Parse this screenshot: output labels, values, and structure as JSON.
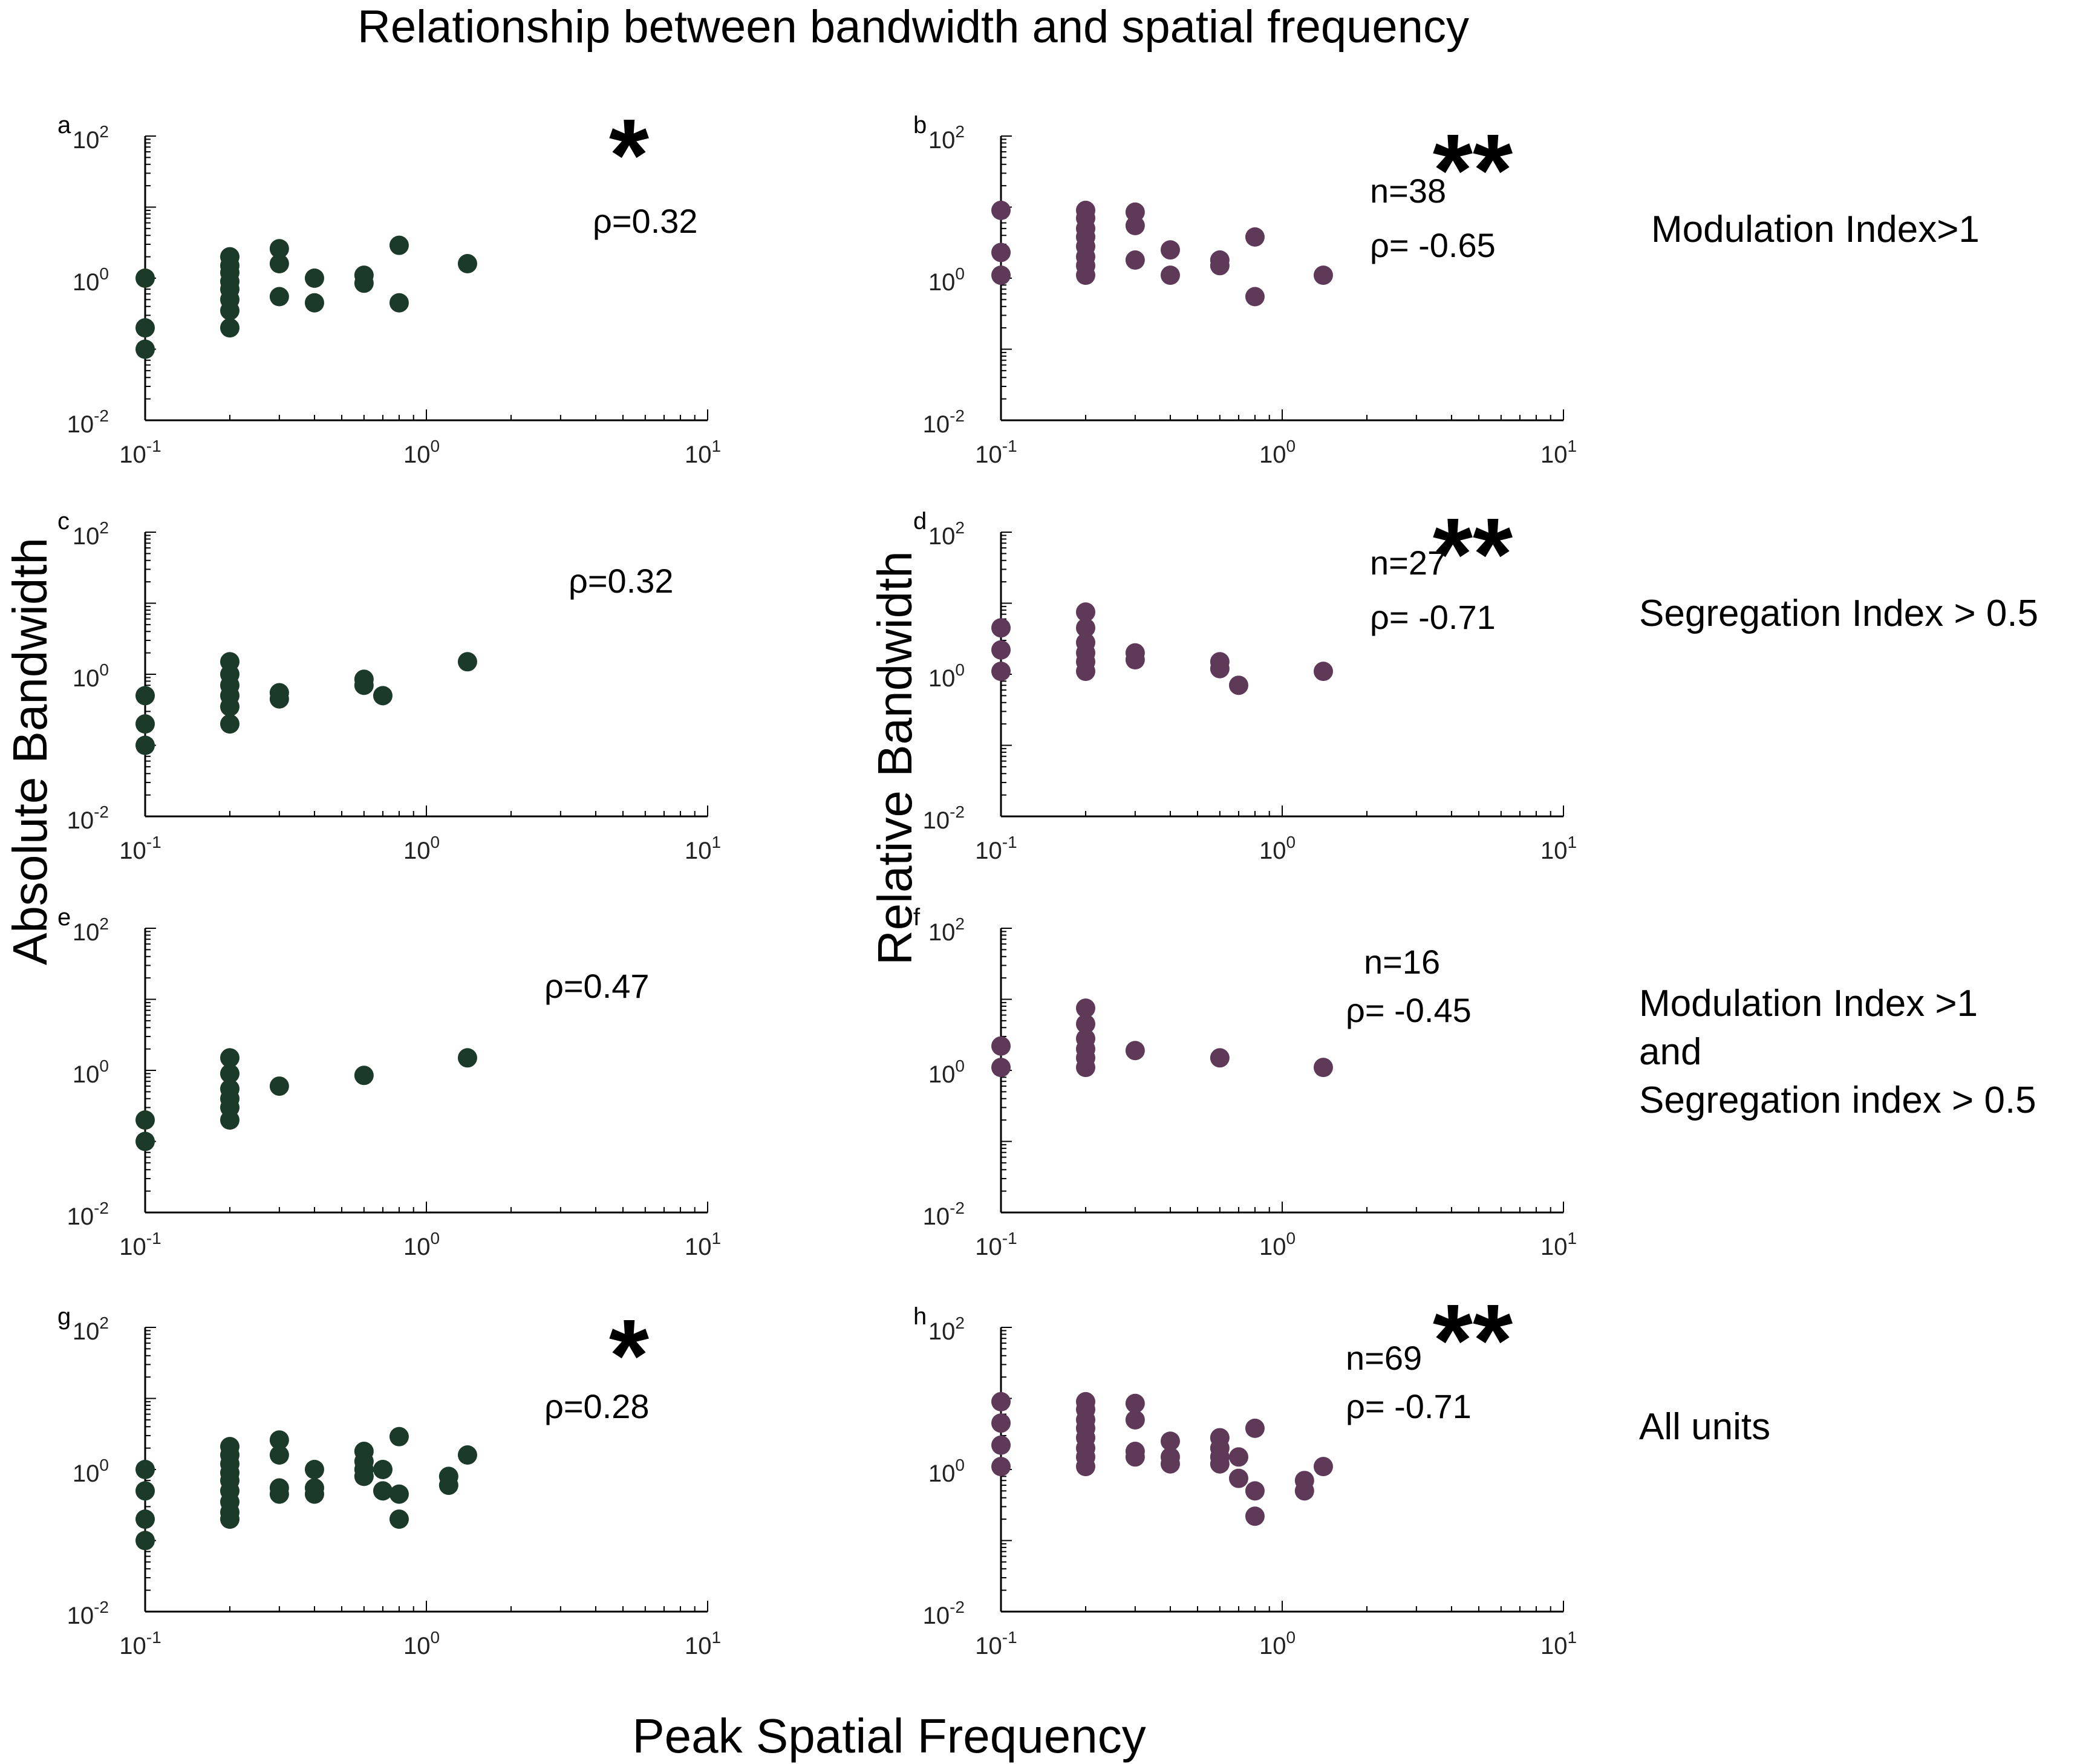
{
  "title": "Relationship between bandwidth and spatial frequency",
  "xlabel": "Peak Spatial Frequency",
  "ylabel_left": "Absolute Bandwidth",
  "ylabel_right": "Relative Bandwidth",
  "row_labels": [
    "Modulation Index>1",
    "Segregation Index > 0.5",
    "Modulation Index  >1\nand\nSegregation index > 0.5",
    "All units"
  ],
  "colors": {
    "absolute": "#1b3a2a",
    "relative": "#5e3a58"
  },
  "chart_data": [
    {
      "panel": "a",
      "type": "scatter",
      "scale": "log",
      "xlim": [
        0.1,
        10
      ],
      "ylim": [
        0.01,
        100
      ],
      "color": "#1b3a2a",
      "rho": "ρ=0.32",
      "n": "",
      "stars": "*",
      "points": [
        [
          0.1,
          1.0
        ],
        [
          0.1,
          0.2
        ],
        [
          0.1,
          0.1
        ],
        [
          0.2,
          2.0
        ],
        [
          0.2,
          1.5
        ],
        [
          0.2,
          1.2
        ],
        [
          0.2,
          0.9
        ],
        [
          0.2,
          0.7
        ],
        [
          0.2,
          0.5
        ],
        [
          0.2,
          0.35
        ],
        [
          0.2,
          0.2
        ],
        [
          0.3,
          2.6
        ],
        [
          0.3,
          1.6
        ],
        [
          0.3,
          0.55
        ],
        [
          0.4,
          1.0
        ],
        [
          0.4,
          0.45
        ],
        [
          0.6,
          1.1
        ],
        [
          0.6,
          0.85
        ],
        [
          0.8,
          2.9
        ],
        [
          0.8,
          0.45
        ],
        [
          1.4,
          1.6
        ]
      ]
    },
    {
      "panel": "b",
      "type": "scatter",
      "scale": "log",
      "xlim": [
        0.1,
        10
      ],
      "ylim": [
        0.01,
        100
      ],
      "color": "#5e3a58",
      "rho": "ρ= -0.65",
      "n": "n=38",
      "stars": "**",
      "points": [
        [
          0.1,
          9.0
        ],
        [
          0.1,
          2.3
        ],
        [
          0.1,
          1.1
        ],
        [
          0.2,
          9.0
        ],
        [
          0.2,
          7.0
        ],
        [
          0.2,
          5.0
        ],
        [
          0.2,
          3.8
        ],
        [
          0.2,
          2.8
        ],
        [
          0.2,
          2.0
        ],
        [
          0.2,
          1.5
        ],
        [
          0.2,
          1.1
        ],
        [
          0.3,
          8.5
        ],
        [
          0.3,
          5.5
        ],
        [
          0.3,
          1.8
        ],
        [
          0.4,
          2.5
        ],
        [
          0.4,
          1.1
        ],
        [
          0.6,
          1.8
        ],
        [
          0.6,
          1.5
        ],
        [
          0.8,
          3.8
        ],
        [
          0.8,
          0.55
        ],
        [
          1.4,
          1.1
        ]
      ]
    },
    {
      "panel": "c",
      "type": "scatter",
      "scale": "log",
      "xlim": [
        0.1,
        10
      ],
      "ylim": [
        0.01,
        100
      ],
      "color": "#1b3a2a",
      "rho": "ρ=0.32",
      "n": "",
      "stars": "",
      "points": [
        [
          0.1,
          0.5
        ],
        [
          0.1,
          0.2
        ],
        [
          0.1,
          0.1
        ],
        [
          0.2,
          1.5
        ],
        [
          0.2,
          1.0
        ],
        [
          0.2,
          0.7
        ],
        [
          0.2,
          0.5
        ],
        [
          0.2,
          0.35
        ],
        [
          0.2,
          0.2
        ],
        [
          0.3,
          0.55
        ],
        [
          0.3,
          0.45
        ],
        [
          0.6,
          0.85
        ],
        [
          0.6,
          0.7
        ],
        [
          0.7,
          0.5
        ],
        [
          1.4,
          1.5
        ]
      ]
    },
    {
      "panel": "d",
      "type": "scatter",
      "scale": "log",
      "xlim": [
        0.1,
        10
      ],
      "ylim": [
        0.01,
        100
      ],
      "color": "#5e3a58",
      "rho": "ρ= -0.71",
      "n": "n=27",
      "stars": "**",
      "points": [
        [
          0.1,
          4.5
        ],
        [
          0.1,
          2.2
        ],
        [
          0.1,
          1.1
        ],
        [
          0.2,
          7.5
        ],
        [
          0.2,
          4.5
        ],
        [
          0.2,
          2.8
        ],
        [
          0.2,
          2.0
        ],
        [
          0.2,
          1.5
        ],
        [
          0.2,
          1.1
        ],
        [
          0.3,
          2.0
        ],
        [
          0.3,
          1.6
        ],
        [
          0.6,
          1.5
        ],
        [
          0.6,
          1.2
        ],
        [
          0.7,
          0.7
        ],
        [
          1.4,
          1.1
        ]
      ]
    },
    {
      "panel": "e",
      "type": "scatter",
      "scale": "log",
      "xlim": [
        0.1,
        10
      ],
      "ylim": [
        0.01,
        100
      ],
      "color": "#1b3a2a",
      "rho": "ρ=0.47",
      "n": "",
      "stars": "",
      "points": [
        [
          0.1,
          0.2
        ],
        [
          0.1,
          0.1
        ],
        [
          0.2,
          1.5
        ],
        [
          0.2,
          0.9
        ],
        [
          0.2,
          0.55
        ],
        [
          0.2,
          0.4
        ],
        [
          0.2,
          0.3
        ],
        [
          0.2,
          0.2
        ],
        [
          0.3,
          0.6
        ],
        [
          0.6,
          0.85
        ],
        [
          1.4,
          1.5
        ]
      ]
    },
    {
      "panel": "f",
      "type": "scatter",
      "scale": "log",
      "xlim": [
        0.1,
        10
      ],
      "ylim": [
        0.01,
        100
      ],
      "color": "#5e3a58",
      "rho": "ρ= -0.45",
      "n": "n=16",
      "stars": "",
      "points": [
        [
          0.1,
          2.2
        ],
        [
          0.1,
          1.1
        ],
        [
          0.2,
          7.5
        ],
        [
          0.2,
          4.5
        ],
        [
          0.2,
          2.8
        ],
        [
          0.2,
          2.0
        ],
        [
          0.2,
          1.5
        ],
        [
          0.2,
          1.1
        ],
        [
          0.3,
          1.9
        ],
        [
          0.6,
          1.5
        ],
        [
          1.4,
          1.1
        ]
      ]
    },
    {
      "panel": "g",
      "type": "scatter",
      "scale": "log",
      "xlim": [
        0.1,
        10
      ],
      "ylim": [
        0.01,
        100
      ],
      "color": "#1b3a2a",
      "rho": "ρ=0.28",
      "n": "",
      "stars": "*",
      "points": [
        [
          0.1,
          1.0
        ],
        [
          0.1,
          0.5
        ],
        [
          0.1,
          0.2
        ],
        [
          0.1,
          0.1
        ],
        [
          0.2,
          2.1
        ],
        [
          0.2,
          1.6
        ],
        [
          0.2,
          1.2
        ],
        [
          0.2,
          0.9
        ],
        [
          0.2,
          0.7
        ],
        [
          0.2,
          0.5
        ],
        [
          0.2,
          0.35
        ],
        [
          0.2,
          0.25
        ],
        [
          0.2,
          0.2
        ],
        [
          0.3,
          2.6
        ],
        [
          0.3,
          1.6
        ],
        [
          0.3,
          0.55
        ],
        [
          0.3,
          0.45
        ],
        [
          0.4,
          1.0
        ],
        [
          0.4,
          0.55
        ],
        [
          0.4,
          0.45
        ],
        [
          0.6,
          1.8
        ],
        [
          0.6,
          1.3
        ],
        [
          0.6,
          1.0
        ],
        [
          0.6,
          0.8
        ],
        [
          0.7,
          1.0
        ],
        [
          0.7,
          0.5
        ],
        [
          0.8,
          2.9
        ],
        [
          0.8,
          0.45
        ],
        [
          0.8,
          0.2
        ],
        [
          1.2,
          0.8
        ],
        [
          1.2,
          0.6
        ],
        [
          1.4,
          1.6
        ]
      ]
    },
    {
      "panel": "h",
      "type": "scatter",
      "scale": "log",
      "xlim": [
        0.1,
        10
      ],
      "ylim": [
        0.01,
        100
      ],
      "color": "#5e3a58",
      "rho": "ρ= -0.71",
      "n": "n=69",
      "stars": "**",
      "points": [
        [
          0.1,
          9.0
        ],
        [
          0.1,
          4.5
        ],
        [
          0.1,
          2.2
        ],
        [
          0.1,
          1.1
        ],
        [
          0.2,
          9.0
        ],
        [
          0.2,
          7.0
        ],
        [
          0.2,
          5.0
        ],
        [
          0.2,
          3.8
        ],
        [
          0.2,
          2.8
        ],
        [
          0.2,
          2.0
        ],
        [
          0.2,
          1.5
        ],
        [
          0.2,
          1.1
        ],
        [
          0.3,
          8.5
        ],
        [
          0.3,
          5.0
        ],
        [
          0.3,
          1.8
        ],
        [
          0.3,
          1.5
        ],
        [
          0.4,
          2.5
        ],
        [
          0.4,
          1.5
        ],
        [
          0.4,
          1.2
        ],
        [
          0.6,
          2.8
        ],
        [
          0.6,
          2.0
        ],
        [
          0.6,
          1.5
        ],
        [
          0.6,
          1.2
        ],
        [
          0.7,
          1.5
        ],
        [
          0.7,
          0.75
        ],
        [
          0.8,
          3.8
        ],
        [
          0.8,
          0.5
        ],
        [
          0.8,
          0.22
        ],
        [
          1.2,
          0.7
        ],
        [
          1.2,
          0.5
        ],
        [
          1.4,
          1.1
        ]
      ]
    }
  ]
}
